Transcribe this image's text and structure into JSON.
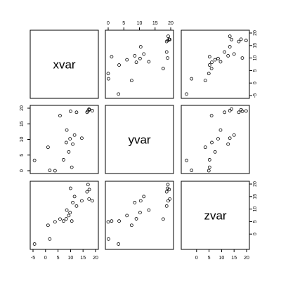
{
  "chart_data": {
    "type": "scatter",
    "matrix": "pairs",
    "variables": [
      "xvar",
      "yvar",
      "zvar"
    ],
    "axis_ranges": {
      "xvar": [
        -5,
        20
      ],
      "yvar": [
        0,
        20
      ],
      "zvar": [
        -5,
        20
      ]
    },
    "axis_ticks": {
      "xvar": [
        -5,
        0,
        5,
        10,
        15,
        20
      ],
      "yvar": [
        0,
        5,
        10,
        15,
        20
      ],
      "zvar": [
        0,
        5,
        10,
        15,
        20
      ]
    },
    "points": {
      "xvar": [
        -4.4,
        1.0,
        1.7,
        3.8,
        5.8,
        7.2,
        8.3,
        8.5,
        9.3,
        9.8,
        10.0,
        10.5,
        10.9,
        11.6,
        12.4,
        14.5,
        16.6,
        17.0,
        17.4,
        17.5,
        18.7
      ],
      "yvar": [
        3.3,
        7.5,
        0.1,
        0.0,
        17.6,
        3.5,
        9.0,
        13.0,
        6.0,
        10.2,
        19.0,
        1.1,
        8.5,
        11.4,
        18.7,
        10.4,
        18.7,
        19.1,
        19.7,
        19.5,
        19.2
      ],
      "zvar": [
        -4.0,
        3.5,
        -2.0,
        4.9,
        6.0,
        5.2,
        6.1,
        9.6,
        7.4,
        8.6,
        18.3,
        5.2,
        12.6,
        15.0,
        11.2,
        13.3,
        16.9,
        19.8,
        14.0,
        17.8,
        13.3
      ]
    },
    "grid": false,
    "legend": "none",
    "colors": {
      "point_stroke": "#000000",
      "panel_border": "#000000"
    }
  }
}
